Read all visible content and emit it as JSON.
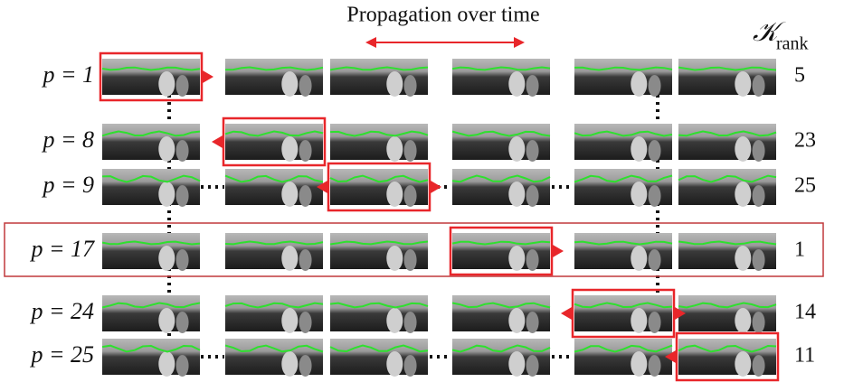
{
  "header": {
    "title": "Propagation over time",
    "rank_symbol": "𝒦",
    "rank_subscript": "rank"
  },
  "rows": [
    {
      "label": "p = 1",
      "rank": "5",
      "highlight": 0
    },
    {
      "label": "p = 8",
      "rank": "23",
      "highlight": 1
    },
    {
      "label": "p = 9",
      "rank": "25",
      "highlight": 2
    },
    {
      "label": "p = 17",
      "rank": "1",
      "highlight": 3
    },
    {
      "label": "p = 24",
      "rank": "14",
      "highlight": 4
    },
    {
      "label": "p = 25",
      "rank": "11",
      "highlight": 5
    }
  ]
}
